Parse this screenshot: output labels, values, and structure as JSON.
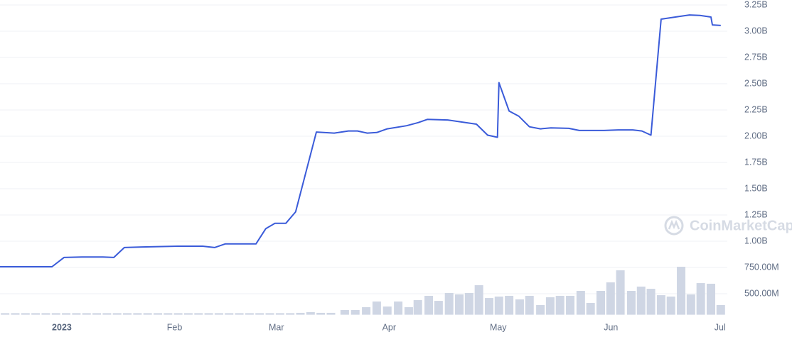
{
  "chart_data": {
    "type": "line",
    "watermark": "CoinMarketCap",
    "xlim": [
      0,
      200
    ],
    "xticks": [
      {
        "value": 17,
        "label": "2023"
      },
      {
        "value": 48,
        "label": "Feb"
      },
      {
        "value": 76,
        "label": "Mar"
      },
      {
        "value": 107,
        "label": "Apr"
      },
      {
        "value": 137,
        "label": "May"
      },
      {
        "value": 168,
        "label": "Jun"
      },
      {
        "value": 198,
        "label": "Jul"
      }
    ],
    "ylim": [
      0.3,
      3.25
    ],
    "yticks": [
      {
        "value": 0.5,
        "label": "500.00M"
      },
      {
        "value": 0.75,
        "label": "750.00M"
      },
      {
        "value": 1.0,
        "label": "1.00B"
      },
      {
        "value": 1.25,
        "label": "1.25B"
      },
      {
        "value": 1.5,
        "label": "1.50B"
      },
      {
        "value": 1.75,
        "label": "1.75B"
      },
      {
        "value": 2.0,
        "label": "2.00B"
      },
      {
        "value": 2.25,
        "label": "2.25B"
      },
      {
        "value": 2.5,
        "label": "2.50B"
      },
      {
        "value": 2.75,
        "label": "2.75B"
      },
      {
        "value": 3.0,
        "label": "3.00B"
      },
      {
        "value": 3.25,
        "label": "3.25B"
      }
    ],
    "grid": true,
    "series": [
      {
        "type": "bar",
        "color": "#cfd6e4",
        "x": [
          1.4,
          4.2,
          7.0,
          9.8,
          12.6,
          15.4,
          18.2,
          21.0,
          23.8,
          26.6,
          29.4,
          32.2,
          35.0,
          37.8,
          40.6,
          43.4,
          46.2,
          49.0,
          51.8,
          54.6,
          57.4,
          60.2,
          63.0,
          65.8,
          68.6,
          71.4,
          74.2,
          77.0,
          79.8,
          82.6,
          85.4,
          88.2,
          91.0,
          94.8,
          97.7,
          100.7,
          103.6,
          106.5,
          109.5,
          112.4,
          114.9,
          117.9,
          120.6,
          123.5,
          126.3,
          129.0,
          131.7,
          134.5,
          137.2,
          140.0,
          142.9,
          145.6,
          148.6,
          151.3,
          154.0,
          156.8,
          159.7,
          162.4,
          165.2,
          167.9,
          170.6,
          173.6,
          176.3,
          179.0,
          181.8,
          184.5,
          187.3,
          190.0,
          192.7,
          195.5,
          198.2
        ],
        "values": [
          0.315,
          0.315,
          0.315,
          0.315,
          0.315,
          0.315,
          0.315,
          0.315,
          0.315,
          0.315,
          0.315,
          0.315,
          0.315,
          0.315,
          0.315,
          0.315,
          0.315,
          0.315,
          0.315,
          0.315,
          0.315,
          0.315,
          0.315,
          0.315,
          0.315,
          0.315,
          0.315,
          0.315,
          0.315,
          0.318,
          0.325,
          0.318,
          0.318,
          0.345,
          0.345,
          0.372,
          0.426,
          0.378,
          0.426,
          0.372,
          0.439,
          0.48,
          0.432,
          0.507,
          0.493,
          0.507,
          0.581,
          0.459,
          0.473,
          0.48,
          0.446,
          0.48,
          0.392,
          0.466,
          0.48,
          0.48,
          0.527,
          0.412,
          0.527,
          0.608,
          0.723,
          0.527,
          0.568,
          0.547,
          0.486,
          0.473,
          0.757,
          0.493,
          0.601,
          0.595,
          0.392
        ]
      },
      {
        "type": "line",
        "color": "#3a5bd9",
        "x": [
          0,
          14.3,
          17.6,
          22.5,
          28.3,
          31.3,
          34.2,
          39.1,
          48.9,
          55.7,
          59.0,
          62.0,
          67.4,
          70.4,
          73.1,
          75.6,
          78.6,
          81.3,
          87.0,
          91.9,
          95.8,
          98.3,
          101.0,
          103.6,
          106.5,
          111.8,
          115.0,
          117.5,
          123.1,
          131.0,
          134.1,
          136.8,
          137.2,
          140.0,
          142.7,
          145.6,
          148.6,
          151.5,
          156.4,
          159.3,
          166.1,
          170.0,
          174.0,
          176.5,
          179.0,
          181.8,
          186.7,
          189.6,
          192.5,
          195.5,
          195.9,
          198.2
        ],
        "values": [
          0.757,
          0.757,
          0.845,
          0.85,
          0.85,
          0.845,
          0.94,
          0.945,
          0.953,
          0.953,
          0.94,
          0.975,
          0.975,
          0.975,
          1.12,
          1.17,
          1.17,
          1.28,
          2.04,
          2.03,
          2.05,
          2.05,
          2.03,
          2.035,
          2.07,
          2.1,
          2.13,
          2.16,
          2.155,
          2.115,
          2.01,
          1.99,
          2.51,
          2.24,
          2.19,
          2.09,
          2.07,
          2.08,
          2.075,
          2.055,
          2.055,
          2.06,
          2.06,
          2.05,
          2.01,
          3.115,
          3.14,
          3.155,
          3.15,
          3.135,
          3.06,
          3.055
        ]
      }
    ]
  }
}
